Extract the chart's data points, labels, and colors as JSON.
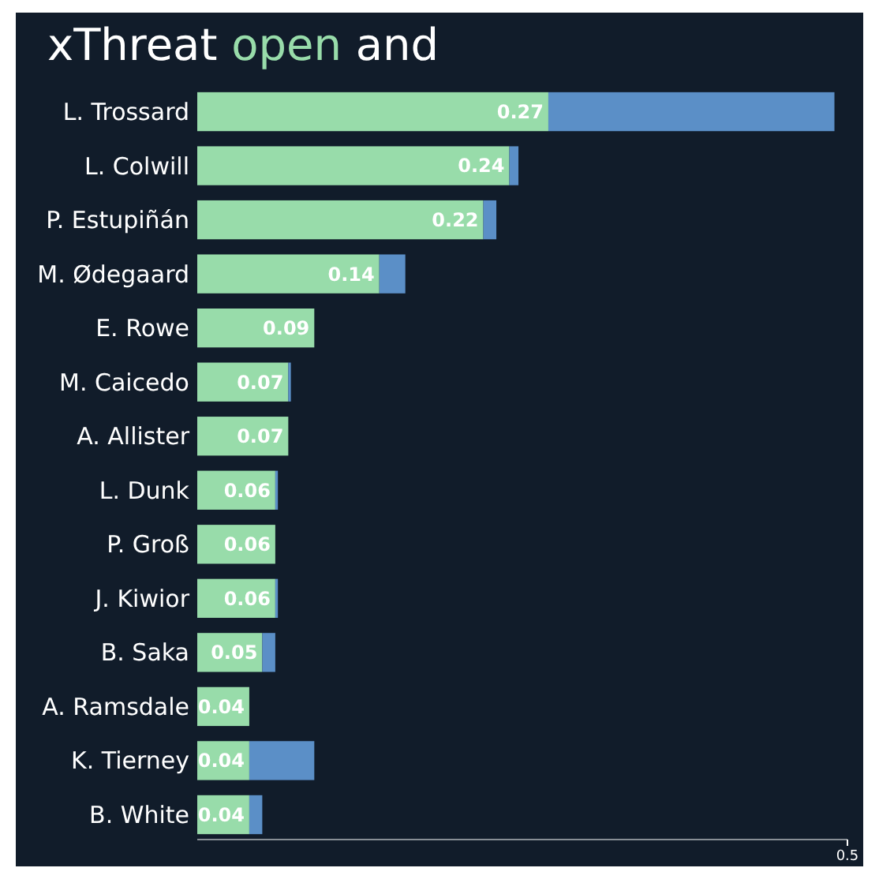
{
  "chart_data": {
    "type": "bar",
    "orientation": "horizontal",
    "stacked": true,
    "title": "xThreat open and",
    "categories": [
      "L. Trossard",
      "L. Colwill",
      "P. Estupiñán",
      "M. Ødegaard",
      "E. Rowe",
      "M. Caicedo",
      "A. Allister",
      "L. Dunk",
      "P. Groß",
      "J. Kiwior",
      "B. Saka",
      "A. Ramsdale",
      "K. Tierney",
      "B. White"
    ],
    "series": [
      {
        "color": "#98dcaa",
        "values": [
          0.27,
          0.24,
          0.22,
          0.14,
          0.09,
          0.07,
          0.07,
          0.06,
          0.06,
          0.06,
          0.05,
          0.04,
          0.04,
          0.04
        ],
        "value_labels": [
          "0.27",
          "0.24",
          "0.22",
          "0.14",
          "0.09",
          "0.07",
          "0.07",
          "0.06",
          "0.06",
          "0.06",
          "0.05",
          "0.04",
          "0.04",
          "0.04"
        ]
      },
      {
        "color": "#5b8fc7",
        "values": [
          0.22,
          0.007,
          0.01,
          0.02,
          0,
          0.002,
          0,
          0.002,
          0,
          0.002,
          0.01,
          0,
          0.05,
          0.01
        ]
      }
    ],
    "xlim": [
      0,
      0.5
    ],
    "xticks": [
      0.5
    ],
    "grid": false
  }
}
